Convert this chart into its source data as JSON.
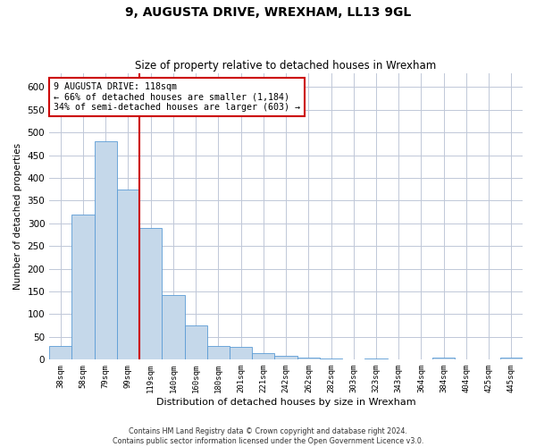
{
  "title": "9, AUGUSTA DRIVE, WREXHAM, LL13 9GL",
  "subtitle": "Size of property relative to detached houses in Wrexham",
  "xlabel": "Distribution of detached houses by size in Wrexham",
  "ylabel": "Number of detached properties",
  "footer1": "Contains HM Land Registry data © Crown copyright and database right 2024.",
  "footer2": "Contains public sector information licensed under the Open Government Licence v3.0.",
  "annotation_line1": "9 AUGUSTA DRIVE: 118sqm",
  "annotation_line2": "← 66% of detached houses are smaller (1,184)",
  "annotation_line3": "34% of semi-detached houses are larger (603) →",
  "bar_color": "#c5d8ea",
  "bar_edge_color": "#5b9bd5",
  "vline_color": "#cc0000",
  "annotation_box_color": "#ffffff",
  "annotation_box_edge": "#cc0000",
  "background_color": "#ffffff",
  "grid_color": "#c0c8d8",
  "categories": [
    "38sqm",
    "58sqm",
    "79sqm",
    "99sqm",
    "119sqm",
    "140sqm",
    "160sqm",
    "180sqm",
    "201sqm",
    "221sqm",
    "242sqm",
    "262sqm",
    "282sqm",
    "303sqm",
    "323sqm",
    "343sqm",
    "364sqm",
    "384sqm",
    "404sqm",
    "425sqm",
    "445sqm"
  ],
  "values": [
    30,
    320,
    480,
    375,
    290,
    143,
    75,
    30,
    28,
    15,
    8,
    5,
    3,
    0,
    3,
    0,
    0,
    4,
    0,
    0,
    4
  ],
  "vline_x": 3.5,
  "ylim": [
    0,
    630
  ],
  "yticks": [
    0,
    50,
    100,
    150,
    200,
    250,
    300,
    350,
    400,
    450,
    500,
    550,
    600
  ]
}
